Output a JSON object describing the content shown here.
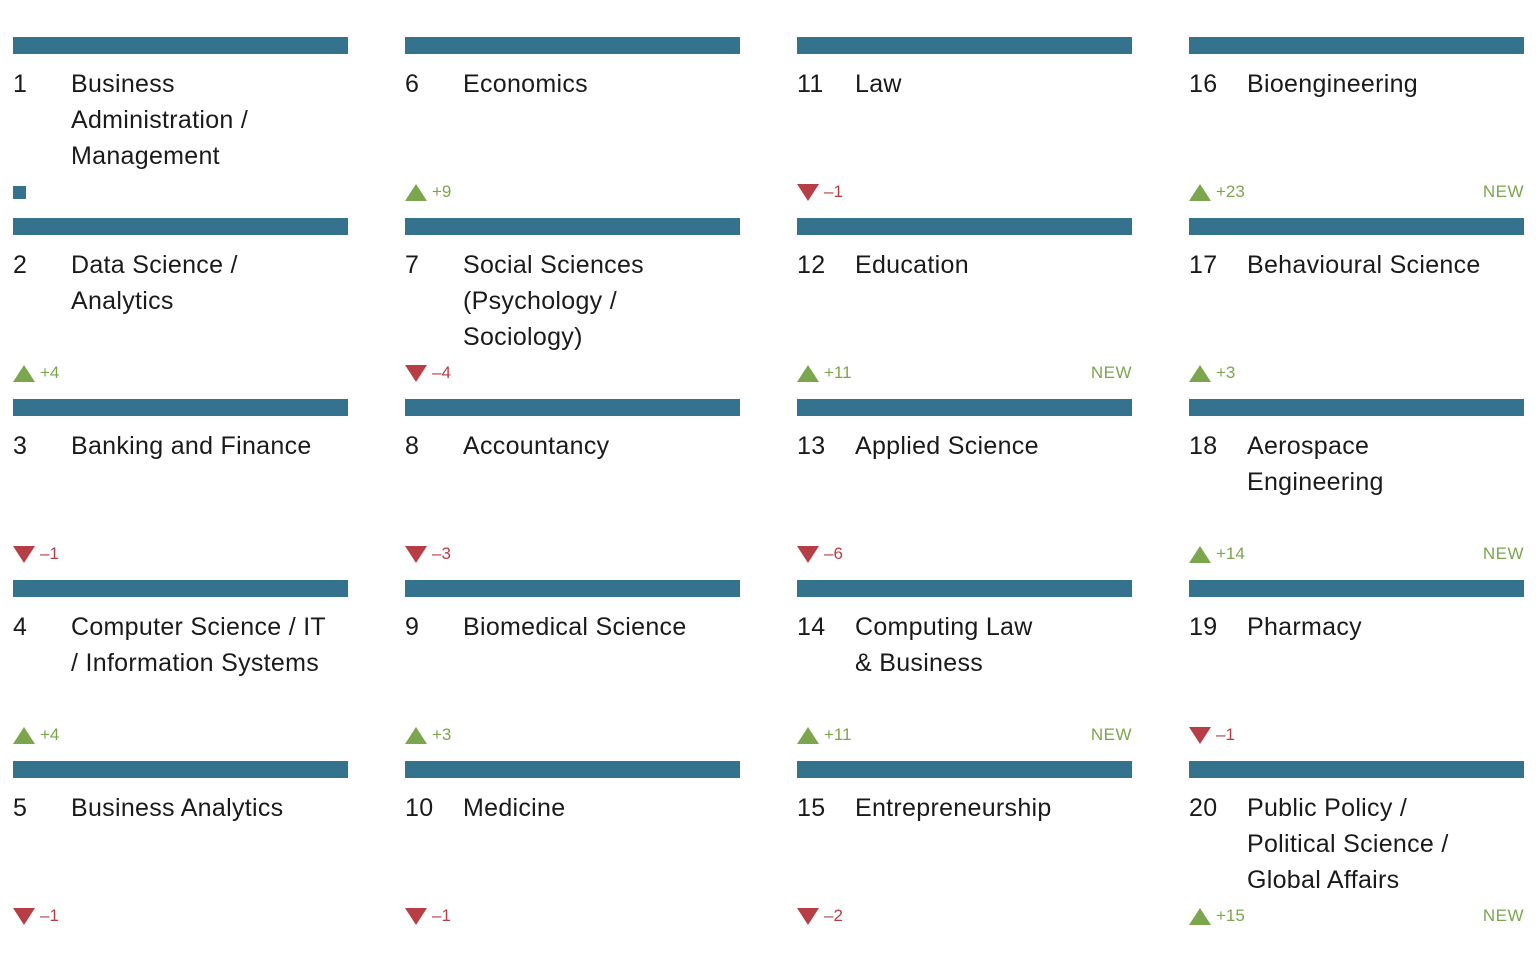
{
  "items": [
    {
      "rank": "1",
      "name": "Business\nAdministration /\nManagement",
      "trend": "same",
      "change": "",
      "new": ""
    },
    {
      "rank": "2",
      "name": "Data Science /\nAnalytics",
      "trend": "up",
      "change": "+4",
      "new": ""
    },
    {
      "rank": "3",
      "name": "Banking and Finance",
      "trend": "down",
      "change": "–1",
      "new": ""
    },
    {
      "rank": "4",
      "name": "Computer Science / IT\n/ Information Systems",
      "trend": "up",
      "change": "+4",
      "new": ""
    },
    {
      "rank": "5",
      "name": "Business Analytics",
      "trend": "down",
      "change": "–1",
      "new": ""
    },
    {
      "rank": "6",
      "name": "Economics",
      "trend": "up",
      "change": "+9",
      "new": ""
    },
    {
      "rank": "7",
      "name": "Social Sciences\n(Psychology /\nSociology)",
      "trend": "down",
      "change": "–4",
      "new": ""
    },
    {
      "rank": "8",
      "name": "Accountancy",
      "trend": "down",
      "change": "–3",
      "new": ""
    },
    {
      "rank": "9",
      "name": "Biomedical Science",
      "trend": "up",
      "change": "+3",
      "new": ""
    },
    {
      "rank": "10",
      "name": "Medicine",
      "trend": "down",
      "change": "–1",
      "new": ""
    },
    {
      "rank": "11",
      "name": "Law",
      "trend": "down",
      "change": "–1",
      "new": ""
    },
    {
      "rank": "12",
      "name": "Education",
      "trend": "up",
      "change": "+11",
      "new": "NEW"
    },
    {
      "rank": "13",
      "name": "Applied Science",
      "trend": "down",
      "change": "–6",
      "new": ""
    },
    {
      "rank": "14",
      "name": "Computing Law\n& Business",
      "trend": "up",
      "change": "+11",
      "new": "NEW"
    },
    {
      "rank": "15",
      "name": "Entrepreneurship",
      "trend": "down",
      "change": "–2",
      "new": ""
    },
    {
      "rank": "16",
      "name": "Bioengineering",
      "trend": "up",
      "change": "+23",
      "new": "NEW"
    },
    {
      "rank": "17",
      "name": "Behavioural Science",
      "trend": "up",
      "change": "+3",
      "new": ""
    },
    {
      "rank": "18",
      "name": "Aerospace\nEngineering",
      "trend": "up",
      "change": "+14",
      "new": "NEW"
    },
    {
      "rank": "19",
      "name": "Pharmacy",
      "trend": "down",
      "change": "–1",
      "new": ""
    },
    {
      "rank": "20",
      "name": "Public Policy /\nPolitical Science /\nGlobal Affairs",
      "trend": "up",
      "change": "+15",
      "new": "NEW"
    }
  ],
  "colors": {
    "bar": "#34728d",
    "up": "#7ba64e",
    "down": "#b83e45",
    "new": "#7ba64e"
  },
  "icons": {
    "up": "triangle-up-icon",
    "down": "triangle-down-icon",
    "same": "square-icon"
  }
}
